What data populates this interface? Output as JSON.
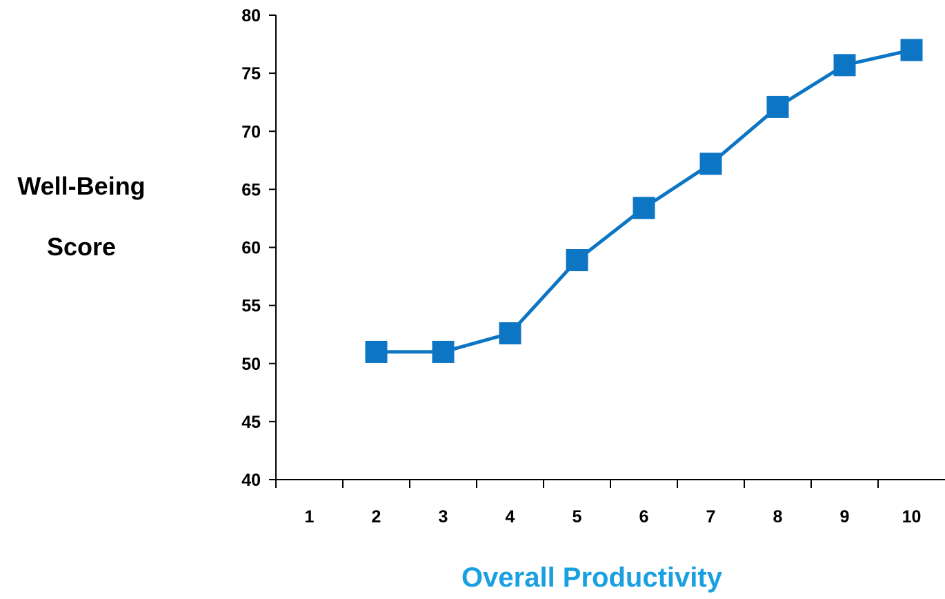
{
  "chart_data": {
    "type": "line",
    "title": "",
    "xlabel": "Overall Productivity",
    "ylabel_lines": [
      "Well-Being",
      "Score"
    ],
    "categories": [
      "1",
      "2",
      "3",
      "4",
      "5",
      "6",
      "7",
      "8",
      "9",
      "10"
    ],
    "y_ticks": [
      "40",
      "45",
      "50",
      "55",
      "60",
      "65",
      "70",
      "75",
      "80"
    ],
    "ylim": [
      40,
      80
    ],
    "grid": false,
    "legend": "none",
    "series": [
      {
        "values": [
          null,
          51,
          51,
          52.6,
          58.9,
          63.4,
          67.2,
          72.1,
          75.7,
          77
        ]
      }
    ],
    "colors": {
      "series": "#0c75c4",
      "xlabel": "#1aa0e0",
      "axis": "#000000"
    }
  }
}
